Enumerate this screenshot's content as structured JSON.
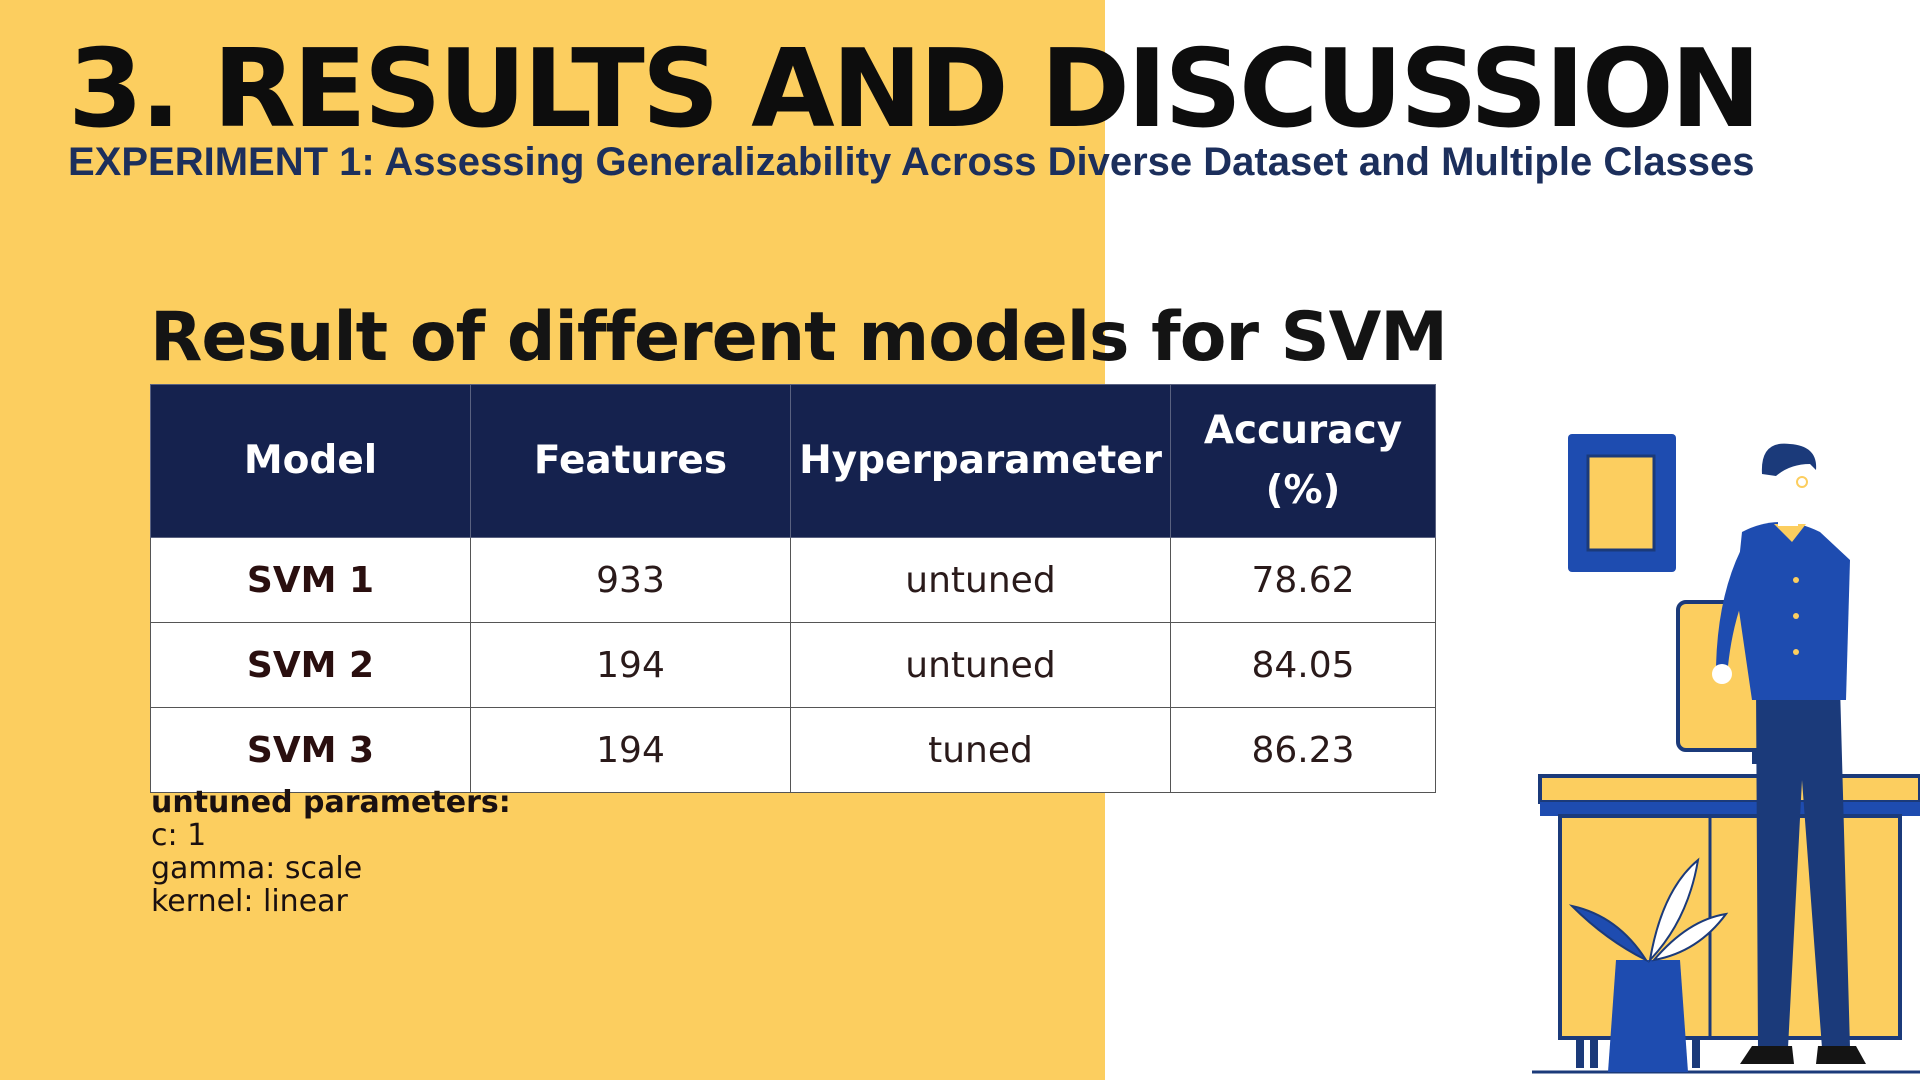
{
  "slide": {
    "title": "3. RESULTS AND DISCUSSION",
    "subtitle": "EXPERIMENT 1: Assessing Generalizability Across Diverse Dataset and Multiple Classes",
    "section_title": "Result of different models for SVM"
  },
  "table": {
    "headers": {
      "model": "Model",
      "features": "Features",
      "hyperparameter": "Hyperparameter",
      "accuracy_line1": "Accuracy",
      "accuracy_line2": "(%)"
    },
    "rows": [
      {
        "model": "SVM 1",
        "features": "933",
        "hyperparameter": "untuned",
        "accuracy": "78.62"
      },
      {
        "model": "SVM 2",
        "features": "194",
        "hyperparameter": "untuned",
        "accuracy": "84.05"
      },
      {
        "model": "SVM 3",
        "features": "194",
        "hyperparameter": "tuned",
        "accuracy": "86.23"
      }
    ]
  },
  "params": {
    "title": "untuned parameters:",
    "lines": [
      "c: 1",
      "gamma: scale",
      "kernel: linear"
    ]
  },
  "illustration": {
    "icon": "person-at-desk-icon",
    "colors": {
      "blue": "#1e4cb0",
      "navy": "#1b3a7a",
      "yellow": "#fcce5f"
    }
  },
  "colors": {
    "background_yellow": "#fcce5f",
    "header_navy": "#15224e",
    "subtitle_blue": "#1c2f5c"
  }
}
